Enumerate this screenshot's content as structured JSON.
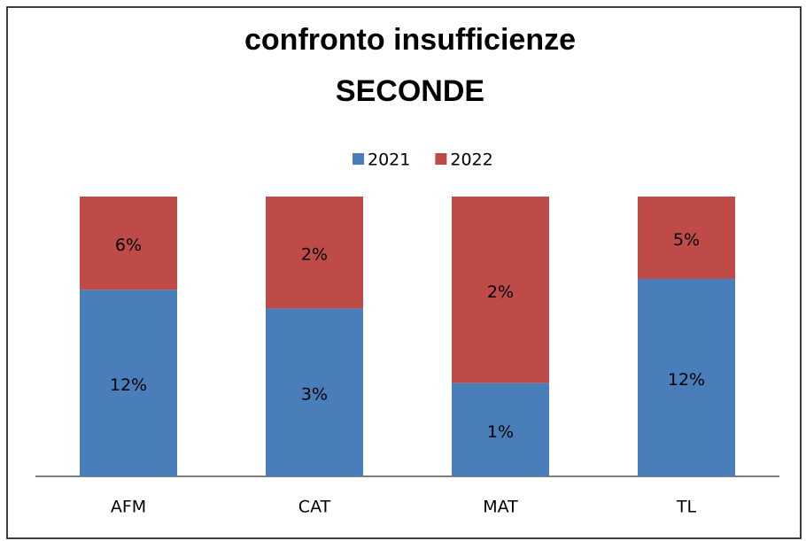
{
  "chart_data": {
    "type": "bar",
    "stacking": "percent",
    "title": [
      "confronto insufficienze",
      "SECONDE"
    ],
    "categories": [
      "AFM",
      "CAT",
      "MAT",
      "TL"
    ],
    "series": [
      {
        "name": "2021",
        "color": "#4a7ebb",
        "values": [
          12,
          3,
          1,
          12
        ],
        "value_labels": [
          "12%",
          "3%",
          "1%",
          "12%"
        ]
      },
      {
        "name": "2022",
        "color": "#be4b48",
        "values": [
          6,
          2,
          2,
          5
        ],
        "value_labels": [
          "6%",
          "2%",
          "2%",
          "5%"
        ]
      }
    ],
    "legend": "top"
  }
}
